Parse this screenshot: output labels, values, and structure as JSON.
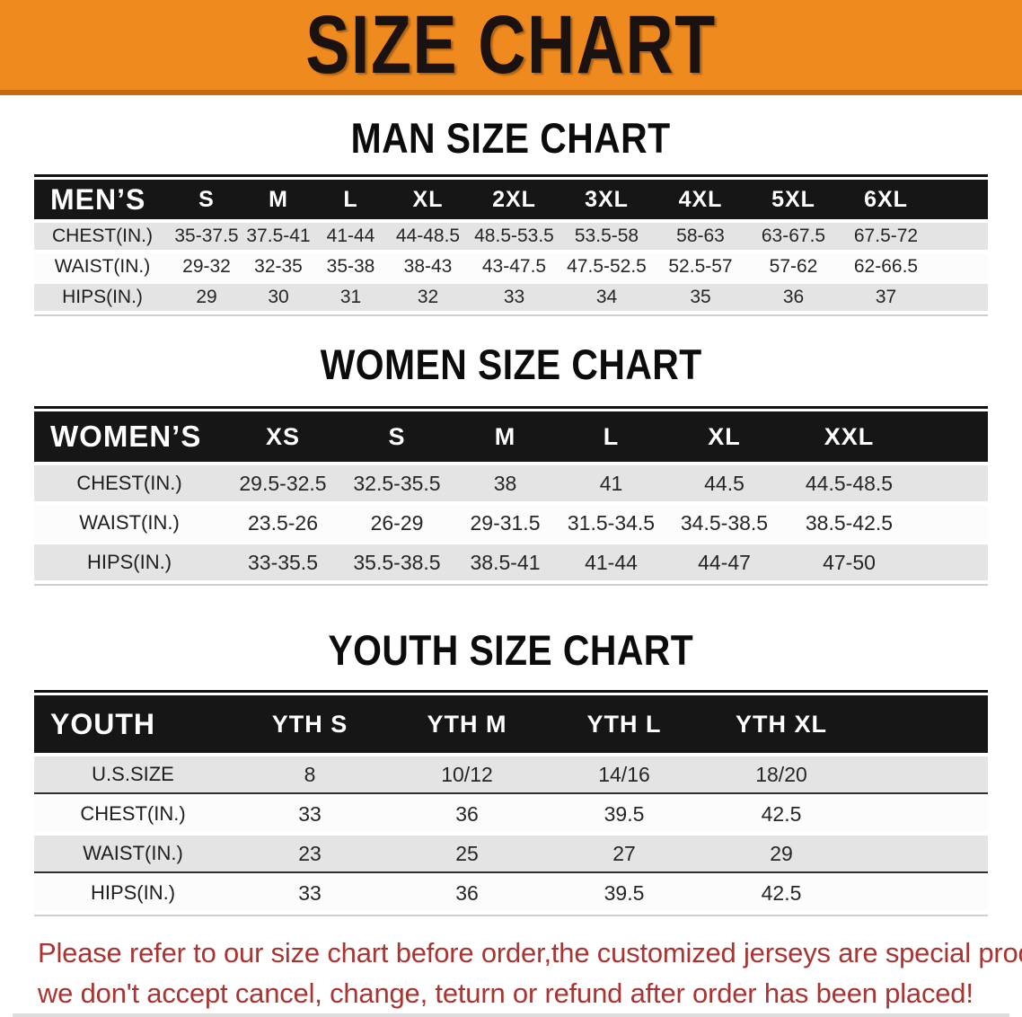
{
  "banner": {
    "title": "SIZE CHART"
  },
  "colors": {
    "banner_bg": "#ee8a1e",
    "banner_edge": "#c56a0e",
    "header_bar": "#161616",
    "row_stripe": "#e4e4e4",
    "disclaimer_text": "#a93431"
  },
  "sections": [
    {
      "id": "men",
      "heading": "MAN SIZE CHART",
      "table": {
        "header_label": "MEN’S",
        "columns": [
          "S",
          "M",
          "L",
          "XL",
          "2XL",
          "3XL",
          "4XL",
          "5XL",
          "6XL"
        ],
        "rows": [
          {
            "label": "CHEST(IN.)",
            "values": [
              "35-37.5",
              "37.5-41",
              "41-44",
              "44-48.5",
              "48.5-53.5",
              "53.5-58",
              "58-63",
              "63-67.5",
              "67.5-72"
            ]
          },
          {
            "label": "WAIST(IN.)",
            "values": [
              "29-32",
              "32-35",
              "35-38",
              "38-43",
              "43-47.5",
              "47.5-52.5",
              "52.5-57",
              "57-62",
              "62-66.5"
            ]
          },
          {
            "label": "HIPS(IN.)",
            "values": [
              "29",
              "30",
              "31",
              "32",
              "33",
              "34",
              "35",
              "36",
              "37"
            ]
          }
        ]
      }
    },
    {
      "id": "women",
      "heading": "WOMEN SIZE CHART",
      "table": {
        "header_label": "WOMEN’S",
        "columns": [
          "XS",
          "S",
          "M",
          "L",
          "XL",
          "XXL"
        ],
        "rows": [
          {
            "label": "CHEST(IN.)",
            "values": [
              "29.5-32.5",
              "32.5-35.5",
              "38",
              "41",
              "44.5",
              "44.5-48.5"
            ]
          },
          {
            "label": "WAIST(IN.)",
            "values": [
              "23.5-26",
              "26-29",
              "29-31.5",
              "31.5-34.5",
              "34.5-38.5",
              "38.5-42.5"
            ]
          },
          {
            "label": "HIPS(IN.)",
            "values": [
              "33-35.5",
              "35.5-38.5",
              "38.5-41",
              "41-44",
              "44-47",
              "47-50"
            ]
          }
        ]
      }
    },
    {
      "id": "youth",
      "heading": "YOUTH SIZE CHART",
      "table": {
        "header_label": "YOUTH",
        "columns": [
          "YTH S",
          "YTH M",
          "YTH L",
          "YTH XL"
        ],
        "rows": [
          {
            "label": "U.S.SIZE",
            "values": [
              "8",
              "10/12",
              "14/16",
              "18/20"
            ]
          },
          {
            "label": "CHEST(IN.)",
            "values": [
              "33",
              "36",
              "39.5",
              "42.5"
            ]
          },
          {
            "label": "WAIST(IN.)",
            "values": [
              "23",
              "25",
              "27",
              "29"
            ]
          },
          {
            "label": "HIPS(IN.)",
            "values": [
              "33",
              "36",
              "39.5",
              "42.5"
            ]
          }
        ]
      }
    }
  ],
  "disclaimer": {
    "line1": "Please refer to our size chart before order,the customized jerseys are special products,",
    "line2": "we don't accept cancel, change, teturn or refund after order has been placed!"
  }
}
